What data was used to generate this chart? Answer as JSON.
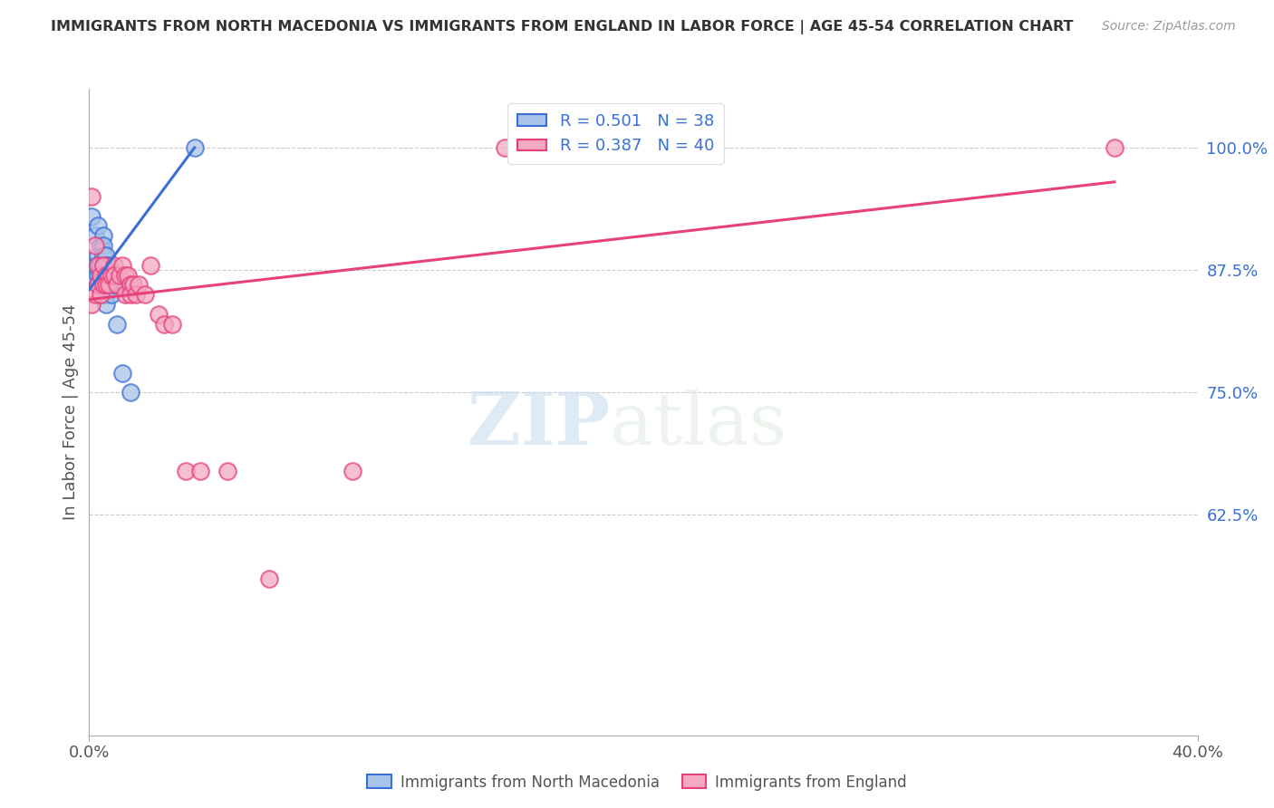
{
  "title": "IMMIGRANTS FROM NORTH MACEDONIA VS IMMIGRANTS FROM ENGLAND IN LABOR FORCE | AGE 45-54 CORRELATION CHART",
  "source": "Source: ZipAtlas.com",
  "ylabel": "In Labor Force | Age 45-54",
  "yticks": [
    0.625,
    0.75,
    0.875,
    1.0
  ],
  "ytick_labels": [
    "62.5%",
    "75.0%",
    "87.5%",
    "100.0%"
  ],
  "xlim": [
    0.0,
    0.4
  ],
  "ylim": [
    0.4,
    1.06
  ],
  "blue_color": "#a8c4e8",
  "pink_color": "#f4a8c4",
  "blue_line_color": "#3a6fd8",
  "pink_line_color": "#e8407a",
  "legend_text_color": "#3a6fd8",
  "watermark_zip": "ZIP",
  "watermark_atlas": "atlas",
  "north_macedonia_x": [
    0.001,
    0.001,
    0.002,
    0.002,
    0.003,
    0.003,
    0.003,
    0.003,
    0.003,
    0.004,
    0.004,
    0.004,
    0.004,
    0.005,
    0.005,
    0.005,
    0.005,
    0.005,
    0.005,
    0.005,
    0.006,
    0.006,
    0.006,
    0.006,
    0.006,
    0.006,
    0.007,
    0.007,
    0.007,
    0.008,
    0.008,
    0.008,
    0.009,
    0.009,
    0.01,
    0.012,
    0.015,
    0.038
  ],
  "north_macedonia_y": [
    0.93,
    0.87,
    0.91,
    0.88,
    0.92,
    0.89,
    0.88,
    0.87,
    0.86,
    0.9,
    0.88,
    0.87,
    0.86,
    0.91,
    0.9,
    0.89,
    0.88,
    0.87,
    0.86,
    0.85,
    0.89,
    0.88,
    0.87,
    0.86,
    0.85,
    0.84,
    0.88,
    0.87,
    0.86,
    0.87,
    0.86,
    0.85,
    0.87,
    0.86,
    0.82,
    0.77,
    0.75,
    1.0
  ],
  "england_x": [
    0.001,
    0.001,
    0.002,
    0.002,
    0.003,
    0.003,
    0.004,
    0.004,
    0.005,
    0.005,
    0.006,
    0.006,
    0.007,
    0.007,
    0.008,
    0.009,
    0.009,
    0.01,
    0.011,
    0.012,
    0.013,
    0.013,
    0.014,
    0.015,
    0.015,
    0.016,
    0.017,
    0.018,
    0.02,
    0.022,
    0.025,
    0.027,
    0.03,
    0.035,
    0.04,
    0.05,
    0.065,
    0.095,
    0.15,
    0.37
  ],
  "england_y": [
    0.95,
    0.84,
    0.9,
    0.85,
    0.88,
    0.86,
    0.87,
    0.85,
    0.88,
    0.86,
    0.87,
    0.86,
    0.87,
    0.86,
    0.87,
    0.88,
    0.87,
    0.86,
    0.87,
    0.88,
    0.87,
    0.85,
    0.87,
    0.86,
    0.85,
    0.86,
    0.85,
    0.86,
    0.85,
    0.88,
    0.83,
    0.82,
    0.82,
    0.67,
    0.67,
    0.67,
    0.56,
    0.67,
    1.0,
    1.0
  ],
  "blue_trendline_x0": 0.0,
  "blue_trendline_y0": 0.855,
  "blue_trendline_x1": 0.038,
  "blue_trendline_y1": 1.0,
  "pink_trendline_x0": 0.0,
  "pink_trendline_y0": 0.845,
  "pink_trendline_x1": 0.37,
  "pink_trendline_y1": 0.965
}
